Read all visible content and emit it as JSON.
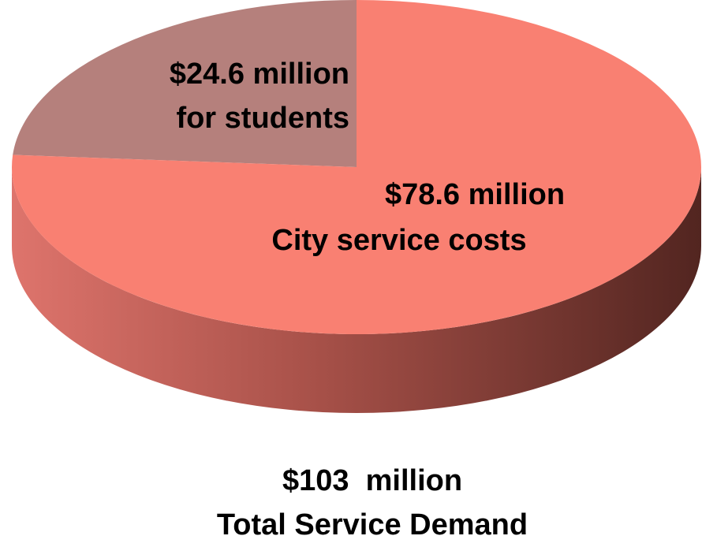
{
  "chart_data": {
    "type": "pie",
    "categories": [
      "for students",
      "City service costs"
    ],
    "values": [
      24.6,
      78.6
    ],
    "value_labels": [
      "$24.6 million",
      "$78.6 million"
    ],
    "colors": [
      "#b5807c",
      "#f98072"
    ],
    "total_label": "$103  million",
    "total_name": "Total Service Demand"
  }
}
